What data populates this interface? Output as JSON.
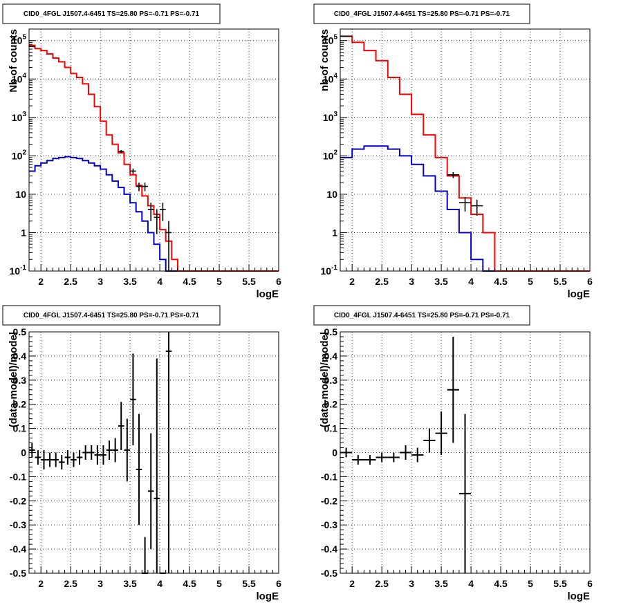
{
  "colors": {
    "data": "#000000",
    "total_model": "#ff0000",
    "source_model": "#0000cc",
    "grid": "#000000"
  },
  "chart_data": [
    {
      "type": "histogram",
      "title": "CID0_4FGL J1507.4-6451 TS=25.80 PS=-0.71 PS=-0.71",
      "xlabel": "logE",
      "ylabel": "Nb of counts",
      "xlim": [
        1.8,
        6
      ],
      "ylim": [
        0.1,
        200000
      ],
      "yscale": "log",
      "grid": true,
      "x_ticks": [
        "2",
        "2.5",
        "3",
        "3.5",
        "4",
        "4.5",
        "5",
        "5.5",
        "6"
      ],
      "y_ticks": [
        {
          "mantissa": "10",
          "exp": "-1",
          "value": 0.1
        },
        {
          "mantissa": "1",
          "exp": "",
          "value": 1
        },
        {
          "mantissa": "10",
          "exp": "",
          "value": 10
        },
        {
          "mantissa": "10",
          "exp": "2",
          "value": 100
        },
        {
          "mantissa": "10",
          "exp": "3",
          "value": 1000
        },
        {
          "mantissa": "10",
          "exp": "4",
          "value": 10000
        },
        {
          "mantissa": "10",
          "exp": "5",
          "value": 100000
        }
      ],
      "bin_width": 0.1,
      "series": [
        {
          "role": "total_model",
          "x_start": 1.8,
          "values": [
            75000,
            62000,
            55000,
            45000,
            35000,
            28000,
            20000,
            14000,
            11000,
            7500,
            4000,
            1900,
            800,
            350,
            200,
            120,
            60,
            32,
            17,
            9,
            5,
            3,
            1.2,
            0.6,
            0.2,
            0.1,
            0.1,
            0.1,
            0.1,
            0.1,
            0.1,
            0.1,
            0.1,
            0.1,
            0.1,
            0.1,
            0.1,
            0.1,
            0.1,
            0.1,
            0.1,
            0.1
          ]
        },
        {
          "role": "source_model",
          "x_start": 1.8,
          "values": [
            40,
            55,
            65,
            75,
            85,
            90,
            95,
            90,
            85,
            75,
            65,
            55,
            45,
            32,
            22,
            15,
            10,
            6,
            3.5,
            2,
            1,
            0.5,
            0.2,
            0.1,
            0.1,
            0.1,
            0.1,
            0.1,
            0.1,
            0.1,
            0.1,
            0.1,
            0.1,
            0.1,
            0.1,
            0.1,
            0.1,
            0.1,
            0.1,
            0.1,
            0.1,
            0.1
          ]
        },
        {
          "role": "data",
          "points": [
            [
              1.85,
              70000
            ],
            [
              3.35,
              130
            ],
            [
              3.55,
              40
            ],
            [
              3.65,
              16
            ],
            [
              3.75,
              16
            ],
            [
              3.85,
              4
            ],
            [
              3.95,
              2.5
            ],
            [
              4.05,
              4
            ],
            [
              4.15,
              1
            ]
          ]
        }
      ]
    },
    {
      "type": "histogram",
      "title": "CID0_4FGL J1507.4-6451 TS=25.80 PS=-0.71 PS=-0.71",
      "xlabel": "logE",
      "ylabel": "nb of counts",
      "xlim": [
        1.8,
        6
      ],
      "ylim": [
        0.1,
        200000
      ],
      "yscale": "log",
      "grid": true,
      "x_ticks": [
        "2",
        "2.5",
        "3",
        "3.5",
        "4",
        "4.5",
        "5",
        "5.5",
        "6"
      ],
      "y_ticks": [
        {
          "mantissa": "10",
          "exp": "-1",
          "value": 0.1
        },
        {
          "mantissa": "1",
          "exp": "",
          "value": 1
        },
        {
          "mantissa": "10",
          "exp": "",
          "value": 10
        },
        {
          "mantissa": "10",
          "exp": "2",
          "value": 100
        },
        {
          "mantissa": "10",
          "exp": "3",
          "value": 1000
        },
        {
          "mantissa": "10",
          "exp": "4",
          "value": 10000
        },
        {
          "mantissa": "10",
          "exp": "5",
          "value": 100000
        }
      ],
      "bin_width": 0.2,
      "series": [
        {
          "role": "total_model",
          "x_start": 1.8,
          "values": [
            130000,
            90000,
            55000,
            30000,
            11000,
            4000,
            1200,
            350,
            90,
            30,
            8,
            3,
            1,
            0.1,
            0.1,
            0.1,
            0.1,
            0.1,
            0.1,
            0.1,
            0.1
          ]
        },
        {
          "role": "source_model",
          "x_start": 1.8,
          "values": [
            90,
            150,
            180,
            180,
            150,
            100,
            60,
            30,
            12,
            4,
            1,
            0.2,
            0.1,
            0.1,
            0.1,
            0.1,
            0.1,
            0.1,
            0.1,
            0.1,
            0.1
          ]
        },
        {
          "role": "data",
          "points": [
            [
              1.9,
              130000
            ],
            [
              3.7,
              32
            ],
            [
              3.9,
              6
            ],
            [
              4.1,
              5
            ]
          ]
        }
      ]
    },
    {
      "type": "scatter",
      "title": "CID0_4FGL J1507.4-6451 TS=25.80 PS=-0.71 PS=-0.71",
      "xlabel": "logE",
      "ylabel": "(data-model)/model",
      "xlim": [
        1.8,
        6
      ],
      "ylim": [
        -0.5,
        0.5
      ],
      "grid": true,
      "x_ticks": [
        "2",
        "2.5",
        "3",
        "3.5",
        "4",
        "4.5",
        "5",
        "5.5",
        "6"
      ],
      "y_ticks": [
        "0.5",
        "0.4",
        "0.3",
        "0.2",
        "0.1",
        "0",
        "-0.1",
        "-0.2",
        "-0.3",
        "-0.4",
        "-0.5"
      ],
      "xerr": 0.05,
      "points": [
        [
          1.85,
          0.01,
          0.03
        ],
        [
          1.95,
          -0.02,
          0.03
        ],
        [
          2.05,
          -0.03,
          0.04
        ],
        [
          2.15,
          -0.03,
          0.03
        ],
        [
          2.25,
          -0.03,
          0.03
        ],
        [
          2.35,
          -0.04,
          0.03
        ],
        [
          2.45,
          -0.02,
          0.03
        ],
        [
          2.55,
          -0.03,
          0.03
        ],
        [
          2.65,
          -0.02,
          0.03
        ],
        [
          2.75,
          0.0,
          0.03
        ],
        [
          2.85,
          0.0,
          0.03
        ],
        [
          2.95,
          -0.01,
          0.04
        ],
        [
          3.05,
          -0.01,
          0.04
        ],
        [
          3.15,
          0.01,
          0.04
        ],
        [
          3.25,
          0.01,
          0.05
        ],
        [
          3.35,
          0.11,
          0.1
        ],
        [
          3.45,
          0.01,
          0.13
        ],
        [
          3.55,
          0.22,
          0.19
        ],
        [
          3.65,
          -0.07,
          0.23
        ],
        [
          3.75,
          -0.5,
          0.15
        ],
        [
          3.85,
          -0.16,
          0.24
        ],
        [
          3.95,
          -0.19,
          0.58
        ],
        [
          4.05,
          -0.5,
          0.0
        ],
        [
          4.15,
          0.42,
          1.0
        ]
      ]
    },
    {
      "type": "scatter",
      "title": "CID0_4FGL J1507.4-6451 TS=25.80 PS=-0.71 PS=-0.71",
      "xlabel": "logE",
      "ylabel": "(data-model)/model",
      "xlim": [
        1.8,
        6
      ],
      "ylim": [
        -0.5,
        0.5
      ],
      "grid": true,
      "x_ticks": [
        "2",
        "2.5",
        "3",
        "3.5",
        "4",
        "4.5",
        "5",
        "5.5",
        "6"
      ],
      "y_ticks": [
        "0.5",
        "0.4",
        "0.3",
        "0.2",
        "0.1",
        "0",
        "-0.1",
        "-0.2",
        "-0.3",
        "-0.4",
        "-0.5"
      ],
      "xerr": 0.1,
      "points": [
        [
          1.9,
          0.0,
          0.02
        ],
        [
          2.1,
          -0.03,
          0.02
        ],
        [
          2.3,
          -0.03,
          0.02
        ],
        [
          2.5,
          -0.02,
          0.02
        ],
        [
          2.7,
          -0.02,
          0.02
        ],
        [
          2.9,
          0.0,
          0.03
        ],
        [
          3.1,
          -0.01,
          0.03
        ],
        [
          3.3,
          0.05,
          0.05
        ],
        [
          3.5,
          0.08,
          0.09
        ],
        [
          3.7,
          0.26,
          0.22
        ],
        [
          3.9,
          -0.17,
          0.33
        ]
      ]
    }
  ]
}
